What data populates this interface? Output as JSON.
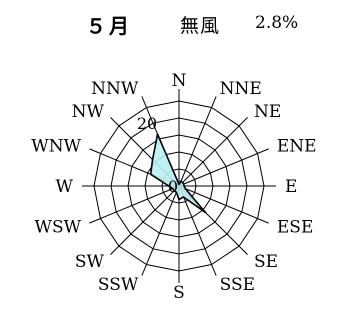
{
  "header": {
    "month": "５月",
    "calm_label": "無風",
    "calm_value": "2.8%"
  },
  "chart_data": {
    "type": "wind-rose",
    "directions": [
      "N",
      "NNE",
      "NE",
      "ENE",
      "E",
      "ESE",
      "SE",
      "SSE",
      "S",
      "SSW",
      "SW",
      "WSW",
      "W",
      "WNW",
      "NW",
      "NNW"
    ],
    "values": [
      0.5,
      1.5,
      1.5,
      1.5,
      1.5,
      2.0,
      11.0,
      3.5,
      4.0,
      2.0,
      2.0,
      2.0,
      3.0,
      9.0,
      11.0,
      16.5
    ],
    "radial_ticks": [
      0,
      20
    ],
    "radial_max": 25,
    "ring_count": 5,
    "grid": true,
    "fill_color": "#b8f0f4",
    "line_color": "#000000"
  }
}
